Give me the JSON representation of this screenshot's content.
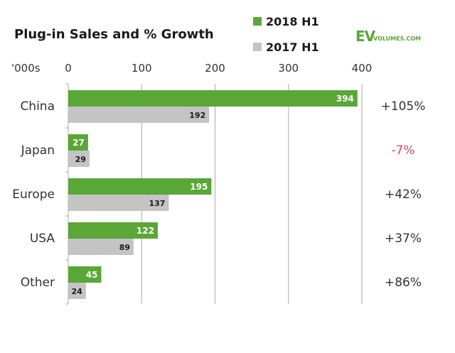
{
  "colors": {
    "series_2018": "#5aa637",
    "series_2017": "#c4c4c4",
    "growth_positive": "#333333",
    "growth_negative": "#e0455e",
    "grid": "#aaaaaa",
    "brand": "#5aa637"
  },
  "logo": {
    "ev": "EV",
    "volumes": "VOLUMES.COM"
  },
  "chart_data": {
    "type": "bar",
    "orientation": "horizontal",
    "title": "Plug-in Sales and % Growth",
    "unit_label": "'000s",
    "categories": [
      "China",
      "Japan",
      "Europe",
      "USA",
      "Other"
    ],
    "series": [
      {
        "name": "2018 H1",
        "values": [
          394,
          27,
          195,
          122,
          45
        ]
      },
      {
        "name": "2017 H1",
        "values": [
          192,
          29,
          137,
          89,
          24
        ]
      }
    ],
    "growth": [
      "+105%",
      "-7%",
      "+42%",
      "+37%",
      "+86%"
    ],
    "xlim": [
      0,
      400
    ],
    "xticks": [
      0,
      100,
      200,
      300,
      400
    ],
    "grid": true,
    "legend_position": "top-right"
  }
}
